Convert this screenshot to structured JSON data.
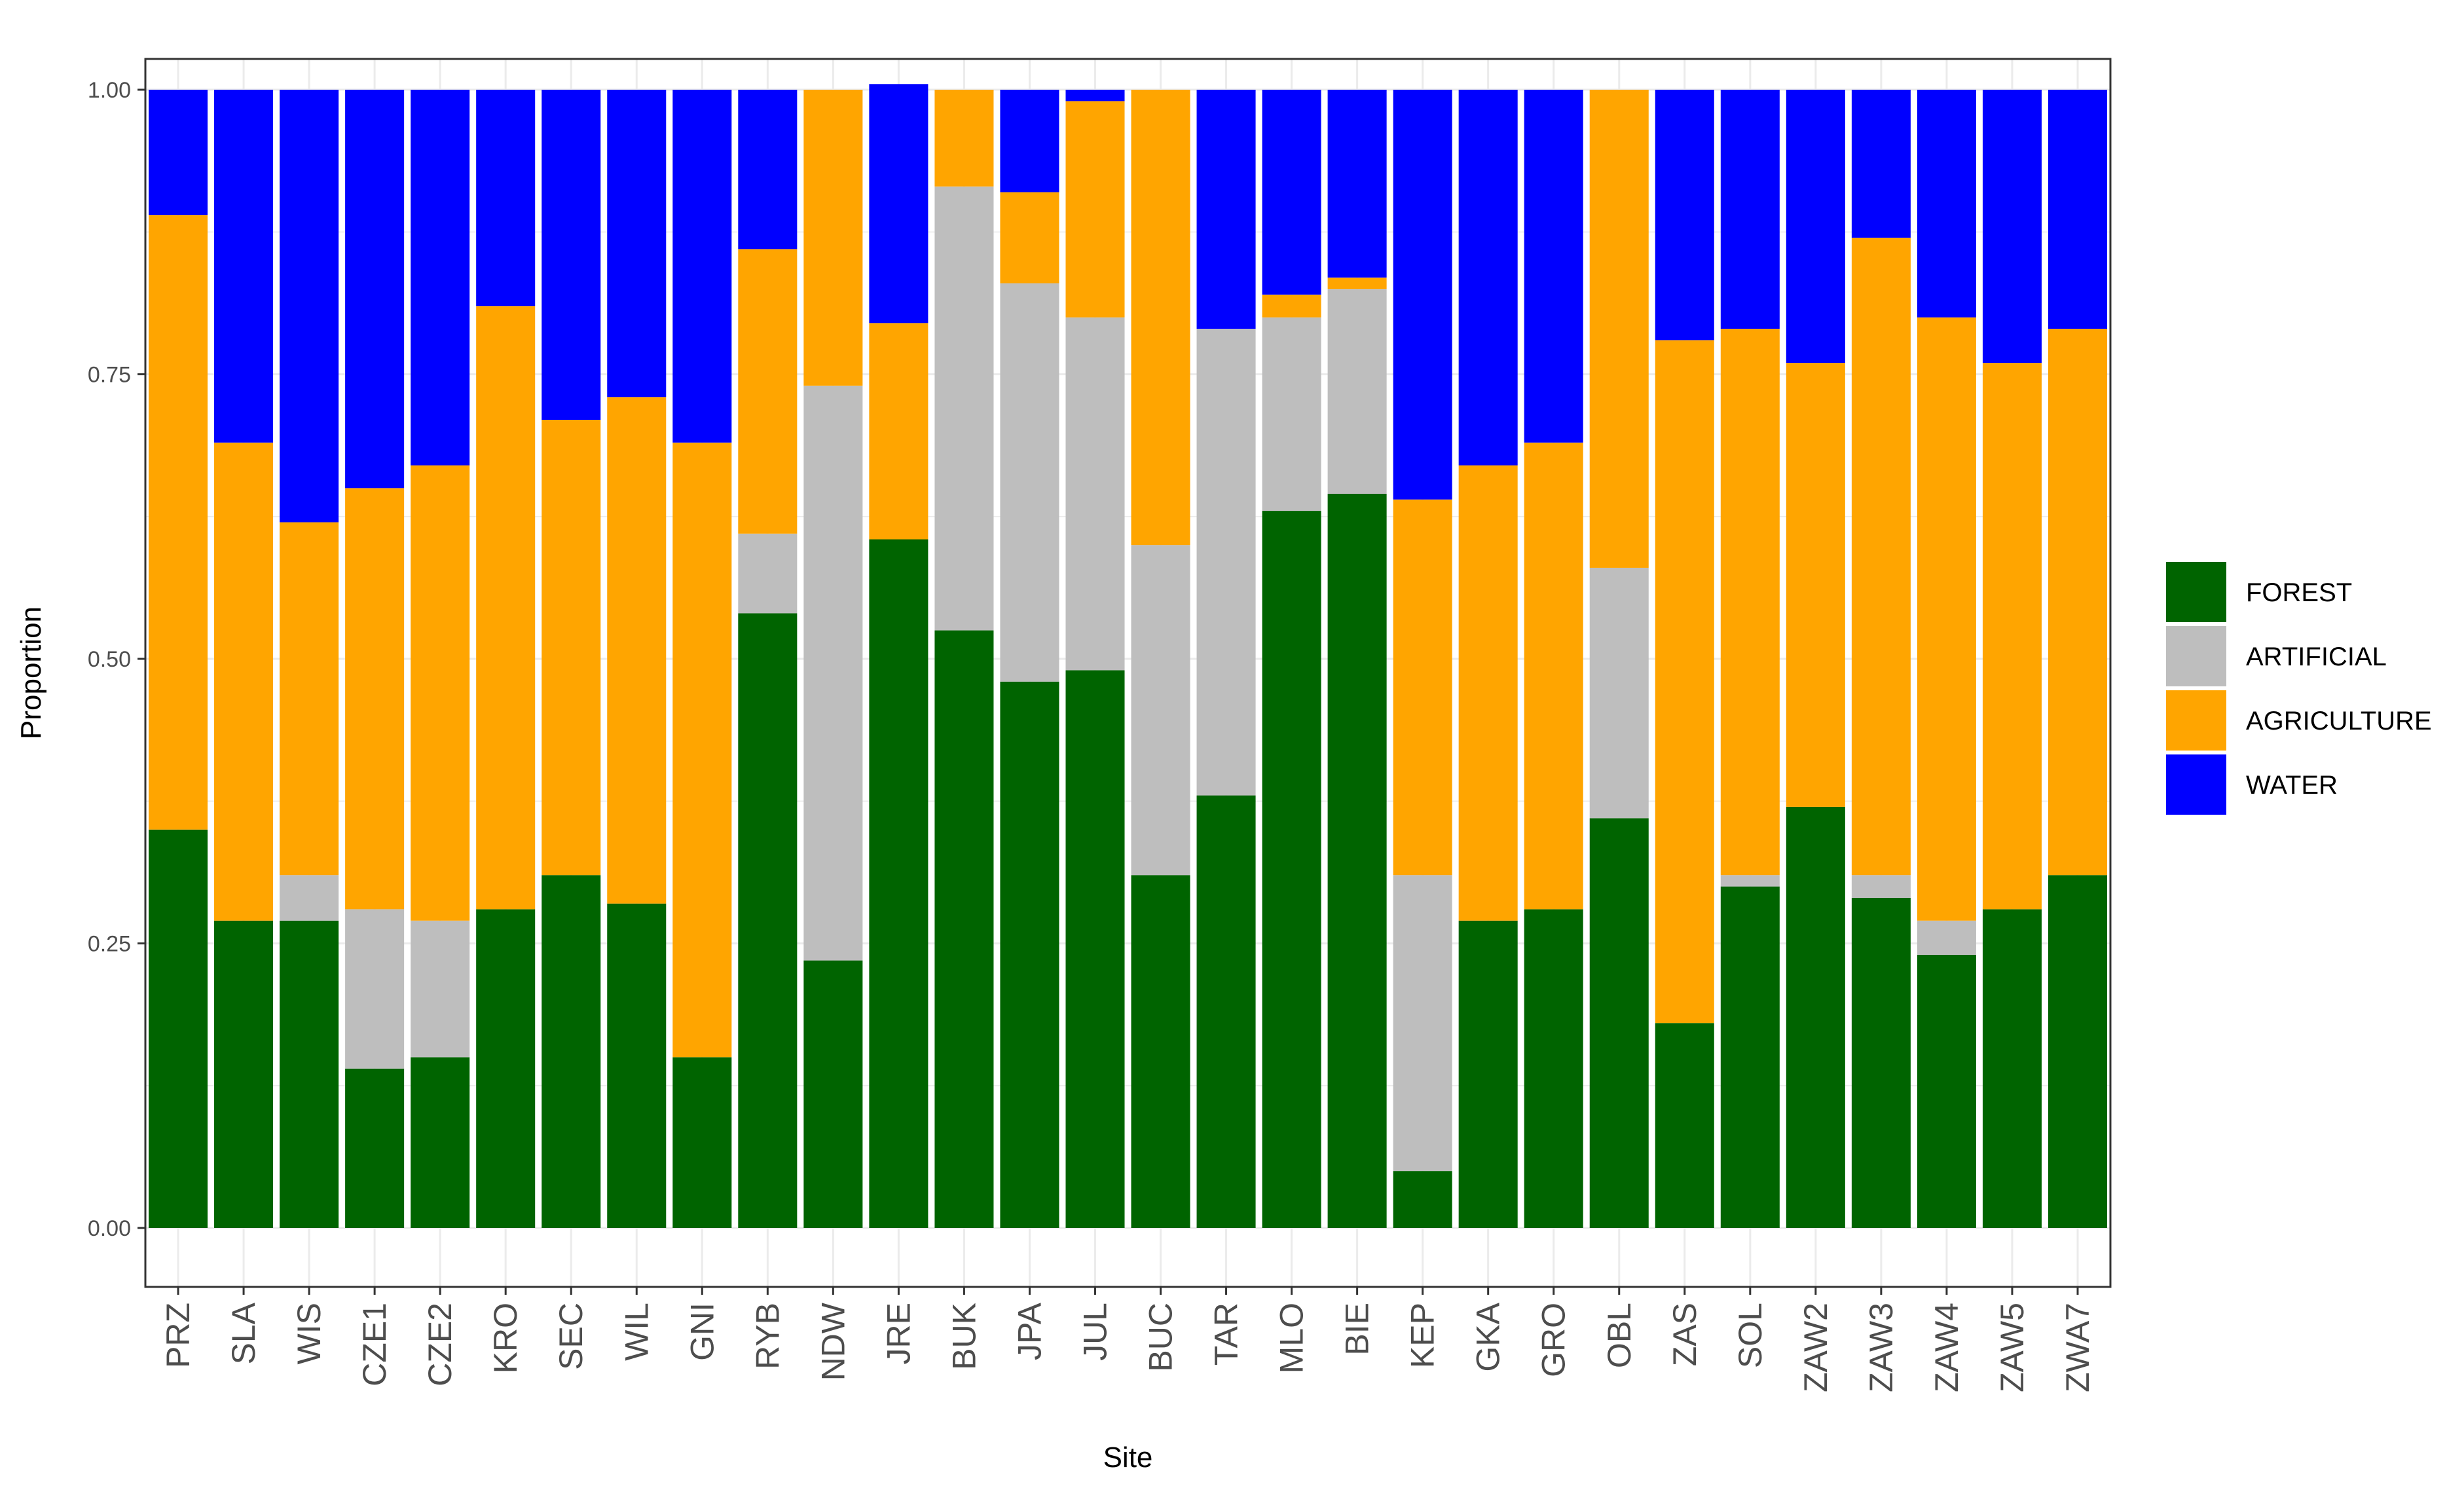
{
  "chart_data": {
    "type": "bar",
    "stacked": true,
    "xlabel": "Site",
    "ylabel": "Proportion",
    "ylim": [
      0,
      1
    ],
    "yticks": [
      "0.00",
      "0.25",
      "0.50",
      "0.75",
      "1.00"
    ],
    "legend_position": "right",
    "categories": [
      "PRZ",
      "SLA",
      "WIS",
      "CZE1",
      "CZE2",
      "KRO",
      "SEC",
      "WIL",
      "GNI",
      "RYB",
      "NDW",
      "JRE",
      "BUK",
      "JPA",
      "JUL",
      "BUC",
      "TAR",
      "MLO",
      "BIE",
      "KEP",
      "GKA",
      "GRO",
      "OBL",
      "ZAS",
      "SOL",
      "ZAW2",
      "ZAW3",
      "ZAW4",
      "ZAW5",
      "ZWA7"
    ],
    "series": [
      {
        "name": "FOREST",
        "color": "#006400",
        "values": [
          0.35,
          0.27,
          0.27,
          0.14,
          0.15,
          0.28,
          0.31,
          0.285,
          0.15,
          0.54,
          0.235,
          0.605,
          0.525,
          0.48,
          0.49,
          0.31,
          0.38,
          0.63,
          0.645,
          0.05,
          0.27,
          0.28,
          0.36,
          0.18,
          0.3,
          0.37,
          0.29,
          0.24,
          0.28,
          0.31
        ]
      },
      {
        "name": "ARTIFICIAL",
        "color": "#bebebe",
        "values": [
          0,
          0,
          0.04,
          0.14,
          0.12,
          0,
          0,
          0,
          0,
          0.07,
          0.505,
          0,
          0.39,
          0.35,
          0.31,
          0.29,
          0.41,
          0.17,
          0.18,
          0.26,
          0,
          0,
          0.22,
          0,
          0.01,
          0,
          0.02,
          0.03,
          0,
          0
        ]
      },
      {
        "name": "AGRICULTURE",
        "color": "#ffa500",
        "values": [
          0.54,
          0.42,
          0.31,
          0.37,
          0.4,
          0.53,
          0.4,
          0.445,
          0.54,
          0.25,
          0.26,
          0.19,
          0.085,
          0.08,
          0.19,
          0.4,
          0,
          0.02,
          0.01,
          0.33,
          0.4,
          0.41,
          0.42,
          0.6,
          0.48,
          0.39,
          0.56,
          0.53,
          0.48,
          0.48
        ]
      },
      {
        "name": "WATER",
        "color": "#0000ff",
        "values": [
          0.11,
          0.31,
          0.38,
          0.35,
          0.33,
          0.19,
          0.29,
          0.27,
          0.31,
          0.14,
          0,
          0.21,
          0,
          0.09,
          0.01,
          0,
          0.21,
          0.18,
          0.165,
          0.36,
          0.33,
          0.31,
          0,
          0.22,
          0.21,
          0.24,
          0.13,
          0.2,
          0.24,
          0.21
        ]
      }
    ]
  }
}
